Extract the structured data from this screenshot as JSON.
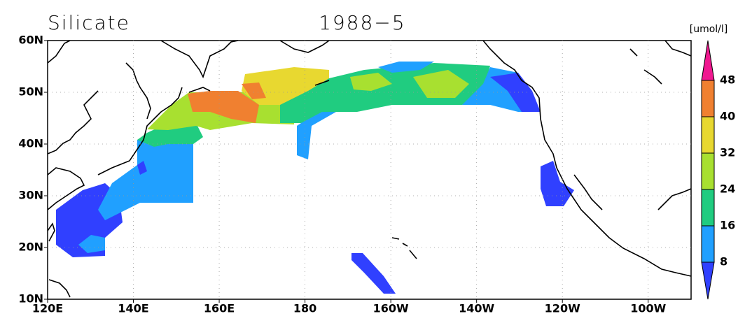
{
  "header": {
    "title": "Silicate",
    "date": "1988−5",
    "unit": "[umol/l]"
  },
  "map": {
    "lat_labels": [
      "60N",
      "50N",
      "40N",
      "30N",
      "20N",
      "10N"
    ],
    "lon_labels": [
      "120E",
      "140E",
      "160E",
      "180",
      "160W",
      "140W",
      "120W",
      "100W"
    ]
  },
  "colorbar": {
    "levels": [
      8,
      16,
      24,
      32,
      40,
      48
    ],
    "colors": [
      "#3040ff",
      "#20a0ff",
      "#20cc80",
      "#a8e030",
      "#e8d830",
      "#f08030",
      "#f01890"
    ]
  }
}
